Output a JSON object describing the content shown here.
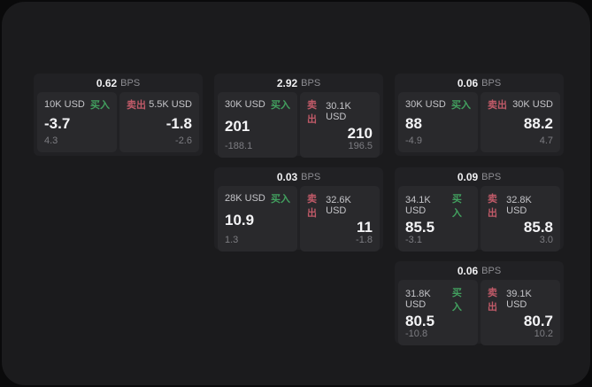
{
  "labels": {
    "bps_unit": "BPS",
    "buy": "买入",
    "sell": "卖出"
  },
  "colors": {
    "green": "#42a05f",
    "red": "#c05a68",
    "panel_bg": "#1b1b1d",
    "card_bg": "#212124",
    "tile_bg": "#29292c"
  },
  "cards": [
    {
      "row": 1,
      "col": 1,
      "bps": "0.62",
      "buy": {
        "amount": "10K USD",
        "price": "-3.7",
        "delta": "4.3"
      },
      "sell": {
        "amount": "5.5K USD",
        "price": "-1.8",
        "delta": "-2.6"
      }
    },
    {
      "row": 1,
      "col": 2,
      "bps": "2.92",
      "buy": {
        "amount": "30K USD",
        "price": "201",
        "delta": "-188.1"
      },
      "sell": {
        "amount": "30.1K USD",
        "price": "210",
        "delta": "196.5"
      }
    },
    {
      "row": 1,
      "col": 3,
      "bps": "0.06",
      "buy": {
        "amount": "30K USD",
        "price": "88",
        "delta": "-4.9"
      },
      "sell": {
        "amount": "30K USD",
        "price": "88.2",
        "delta": "4.7"
      }
    },
    {
      "row": 2,
      "col": 2,
      "bps": "0.03",
      "buy": {
        "amount": "28K USD",
        "price": "10.9",
        "delta": "1.3"
      },
      "sell": {
        "amount": "32.6K USD",
        "price": "11",
        "delta": "-1.8"
      }
    },
    {
      "row": 2,
      "col": 3,
      "bps": "0.09",
      "buy": {
        "amount": "34.1K USD",
        "price": "85.5",
        "delta": "-3.1"
      },
      "sell": {
        "amount": "32.8K USD",
        "price": "85.8",
        "delta": "3.0"
      }
    },
    {
      "row": 3,
      "col": 3,
      "bps": "0.06",
      "buy": {
        "amount": "31.8K USD",
        "price": "80.5",
        "delta": "-10.8"
      },
      "sell": {
        "amount": "39.1K USD",
        "price": "80.7",
        "delta": "10.2"
      }
    }
  ]
}
